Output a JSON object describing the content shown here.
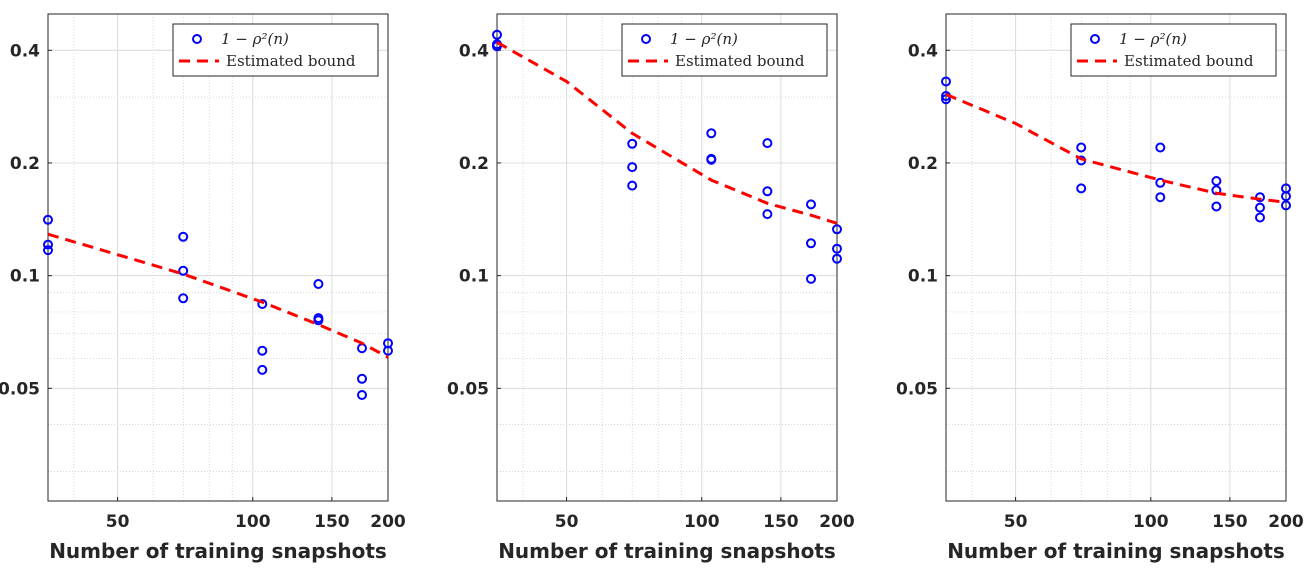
{
  "figure": {
    "panel_count": 3
  },
  "chart_data": [
    {
      "type": "scatter",
      "xscale": "log",
      "yscale": "log",
      "xlim": [
        35,
        200
      ],
      "ylim": [
        0.025,
        0.5
      ],
      "xticks": [
        50,
        100,
        150,
        200
      ],
      "xtick_labels": [
        "50",
        "100",
        "150",
        "200"
      ],
      "yticks": [
        0.05,
        0.1,
        0.2,
        0.4
      ],
      "ytick_labels": [
        "0.05",
        "0.1",
        "0.2",
        "0.4"
      ],
      "xlabel": "Number of training snapshots",
      "ylabel": "",
      "grid": true,
      "legend": {
        "placement": "top-right",
        "entries": [
          "1 − ρ²(n)",
          "Estimated bound"
        ]
      },
      "series": [
        {
          "name": "1 − ρ²(n)",
          "style": "markers",
          "color": "#0000ff",
          "points": [
            [
              35,
              0.141
            ],
            [
              35,
              0.121
            ],
            [
              35,
              0.117
            ],
            [
              70,
              0.127
            ],
            [
              70,
              0.103
            ],
            [
              70,
              0.087
            ],
            [
              105,
              0.084
            ],
            [
              105,
              0.063
            ],
            [
              105,
              0.056
            ],
            [
              140,
              0.095
            ],
            [
              140,
              0.077
            ],
            [
              140,
              0.076
            ],
            [
              175,
              0.064
            ],
            [
              175,
              0.053
            ],
            [
              175,
              0.048
            ],
            [
              200,
              0.066
            ],
            [
              200,
              0.063
            ]
          ]
        },
        {
          "name": "Estimated bound",
          "style": "dashed",
          "color": "#ff0000",
          "points": [
            [
              35,
              0.129
            ],
            [
              70,
              0.101
            ],
            [
              105,
              0.085
            ],
            [
              140,
              0.074
            ],
            [
              175,
              0.066
            ],
            [
              200,
              0.0605
            ]
          ]
        }
      ]
    },
    {
      "type": "scatter",
      "xscale": "log",
      "yscale": "log",
      "xlim": [
        35,
        200
      ],
      "ylim": [
        0.025,
        0.5
      ],
      "xticks": [
        50,
        100,
        150,
        200
      ],
      "xtick_labels": [
        "50",
        "100",
        "150",
        "200"
      ],
      "yticks": [
        0.05,
        0.1,
        0.2,
        0.4
      ],
      "ytick_labels": [
        "0.05",
        "0.1",
        "0.2",
        "0.4"
      ],
      "xlabel": "Number of training snapshots",
      "ylabel": "",
      "grid": true,
      "legend": {
        "placement": "top-right",
        "entries": [
          "1 − ρ²(n)",
          "Estimated bound"
        ]
      },
      "series": [
        {
          "name": "1 − ρ²(n)",
          "style": "markers",
          "color": "#0000ff",
          "points": [
            [
              35,
              0.44
            ],
            [
              35,
              0.415
            ],
            [
              35,
              0.41
            ],
            [
              70,
              0.225
            ],
            [
              70,
              0.195
            ],
            [
              70,
              0.174
            ],
            [
              105,
              0.24
            ],
            [
              105,
              0.205
            ],
            [
              105,
              0.204
            ],
            [
              140,
              0.226
            ],
            [
              140,
              0.168
            ],
            [
              140,
              0.146
            ],
            [
              175,
              0.155
            ],
            [
              175,
              0.122
            ],
            [
              175,
              0.098
            ],
            [
              200,
              0.133
            ],
            [
              200,
              0.118
            ],
            [
              200,
              0.111
            ]
          ]
        },
        {
          "name": "Estimated bound",
          "style": "dashed",
          "color": "#ff0000",
          "points": [
            [
              35,
              0.42
            ],
            [
              50,
              0.33
            ],
            [
              70,
              0.24
            ],
            [
              105,
              0.18
            ],
            [
              140,
              0.156
            ],
            [
              175,
              0.145
            ],
            [
              200,
              0.138
            ]
          ]
        }
      ]
    },
    {
      "type": "scatter",
      "xscale": "log",
      "yscale": "log",
      "xlim": [
        35,
        200
      ],
      "ylim": [
        0.025,
        0.5
      ],
      "xticks": [
        50,
        100,
        150,
        200
      ],
      "xtick_labels": [
        "50",
        "100",
        "150",
        "200"
      ],
      "yticks": [
        0.05,
        0.1,
        0.2,
        0.4
      ],
      "ytick_labels": [
        "0.05",
        "0.1",
        "0.2",
        "0.4"
      ],
      "xlabel": "Number of training snapshots",
      "ylabel": "",
      "grid": true,
      "legend": {
        "placement": "top-right",
        "entries": [
          "1 − ρ²(n)",
          "Estimated bound"
        ]
      },
      "series": [
        {
          "name": "1 − ρ²(n)",
          "style": "markers",
          "color": "#0000ff",
          "points": [
            [
              35,
              0.33
            ],
            [
              35,
              0.302
            ],
            [
              35,
              0.296
            ],
            [
              70,
              0.22
            ],
            [
              70,
              0.203
            ],
            [
              70,
              0.171
            ],
            [
              105,
              0.22
            ],
            [
              105,
              0.177
            ],
            [
              105,
              0.162
            ],
            [
              140,
              0.179
            ],
            [
              140,
              0.169
            ],
            [
              140,
              0.153
            ],
            [
              175,
              0.162
            ],
            [
              175,
              0.152
            ],
            [
              175,
              0.143
            ],
            [
              200,
              0.171
            ],
            [
              200,
              0.163
            ],
            [
              200,
              0.154
            ]
          ]
        },
        {
          "name": "Estimated bound",
          "style": "dashed",
          "color": "#ff0000",
          "points": [
            [
              35,
              0.305
            ],
            [
              50,
              0.255
            ],
            [
              70,
              0.205
            ],
            [
              105,
              0.18
            ],
            [
              140,
              0.166
            ],
            [
              175,
              0.16
            ],
            [
              200,
              0.157
            ]
          ]
        }
      ]
    }
  ]
}
